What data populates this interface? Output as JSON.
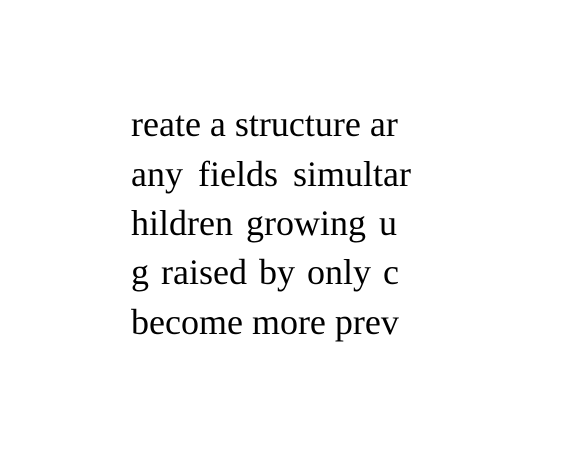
{
  "document": {
    "lines": [
      "reate a structure ar",
      "any fields simultar",
      "hildren growing u",
      "g raised by only c",
      "become more prev"
    ]
  }
}
